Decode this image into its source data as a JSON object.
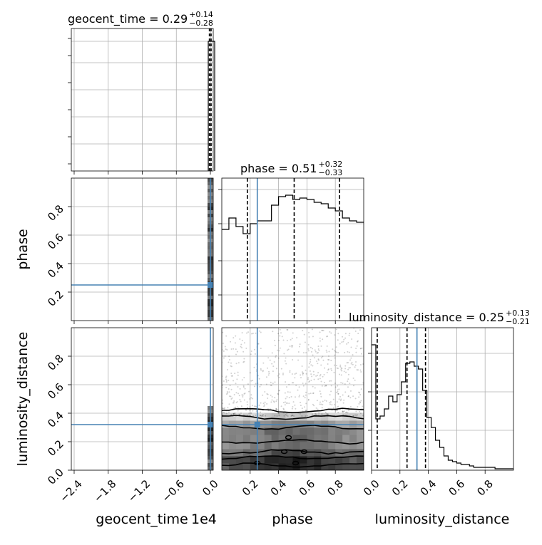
{
  "chart_data": {
    "type": "corner",
    "parameters": [
      "geocent_time",
      "phase",
      "luminosity_distance"
    ],
    "axis_labels": {
      "geocent_time": "geocent_time",
      "phase": "phase",
      "luminosity_distance": "luminosity_distance"
    },
    "offset_label": "1e4",
    "truth_color": "#4682b4",
    "truths": {
      "geocent_time": 0.0,
      "phase": 0.25,
      "luminosity_distance": 0.32
    },
    "titles": [
      {
        "param": "geocent_time",
        "text": "geocent_time = 0.29",
        "sup": "+0.14",
        "sub": "−0.28"
      },
      {
        "param": "phase",
        "text": "phase = 0.51",
        "sup": "+0.32",
        "sub": "−0.33"
      },
      {
        "param": "luminosity_distance",
        "text": "luminosity_distance = 0.25",
        "sup": "+0.13",
        "sub": "−0.21"
      }
    ],
    "quantiles": {
      "geocent_time": [
        0.01,
        0.29,
        0.43
      ],
      "phase": [
        0.18,
        0.51,
        0.83
      ],
      "luminosity_distance": [
        0.04,
        0.25,
        0.38
      ]
    },
    "ticks": {
      "geocent_time_x": [
        "−2.4",
        "−1.8",
        "−1.2",
        "−0.6",
        "0.0"
      ],
      "phase_x": [
        "0.2",
        "0.4",
        "0.6",
        "0.8"
      ],
      "luminosity_distance_x": [
        "0.0",
        "0.2",
        "0.4",
        "0.6",
        "0.8"
      ],
      "phase_y": [
        "0.2",
        "0.4",
        "0.6",
        "0.8"
      ],
      "luminosity_distance_y": [
        "0.0",
        "0.2",
        "0.4",
        "0.6",
        "0.8"
      ]
    },
    "geocent_time_range": [
      -2.45,
      0.05
    ],
    "phase_range": [
      0,
      1
    ],
    "luminosity_distance_range": [
      0,
      1
    ],
    "phase_hist": {
      "bin_edges": [
        0,
        0.05,
        0.1,
        0.15,
        0.2,
        0.25,
        0.3,
        0.35,
        0.4,
        0.45,
        0.5,
        0.55,
        0.6,
        0.65,
        0.7,
        0.75,
        0.8,
        0.85,
        0.9,
        0.95,
        1.0
      ],
      "counts": [
        0.64,
        0.72,
        0.66,
        0.61,
        0.68,
        0.7,
        0.7,
        0.81,
        0.87,
        0.88,
        0.85,
        0.86,
        0.85,
        0.83,
        0.82,
        0.79,
        0.77,
        0.72,
        0.7,
        0.69
      ]
    },
    "luminosity_distance_hist": {
      "bin_edges": [
        0,
        0.03,
        0.06,
        0.09,
        0.12,
        0.15,
        0.18,
        0.21,
        0.24,
        0.27,
        0.3,
        0.33,
        0.36,
        0.39,
        0.42,
        0.45,
        0.48,
        0.51,
        0.54,
        0.57,
        0.6,
        0.63,
        0.66,
        0.69,
        0.72,
        0.75,
        0.78,
        0.81,
        0.84,
        0.87,
        0.9,
        0.93,
        0.96,
        1.0
      ],
      "counts": [
        0.88,
        0.36,
        0.38,
        0.43,
        0.52,
        0.48,
        0.53,
        0.62,
        0.75,
        0.76,
        0.73,
        0.71,
        0.56,
        0.37,
        0.3,
        0.21,
        0.16,
        0.1,
        0.07,
        0.06,
        0.05,
        0.04,
        0.04,
        0.03,
        0.02,
        0.02,
        0.02,
        0.02,
        0.02,
        0.01,
        0.01,
        0.01,
        0.01
      ]
    },
    "geocent_time_hist_peak": 0.0,
    "grid": true
  }
}
